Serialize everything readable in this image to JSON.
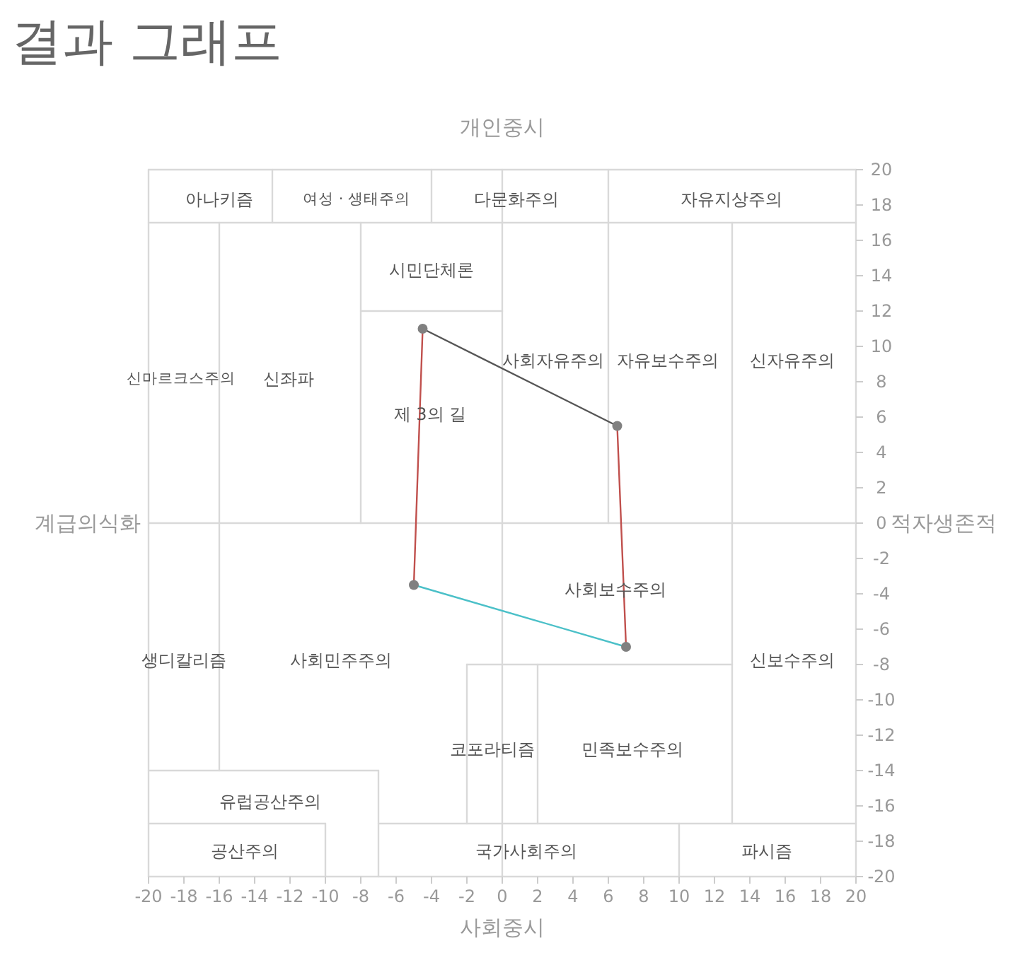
{
  "chart_data": {
    "type": "line",
    "title": "결과 그래프",
    "xlabel": "사회중시",
    "ylabel": "계급의식화",
    "y2label": "적자생존적",
    "xlim": [
      -20,
      20
    ],
    "ylim": [
      -20,
      20
    ],
    "xticks": [
      -20,
      -18,
      -16,
      -14,
      -12,
      -10,
      -8,
      -6,
      -4,
      -2,
      0,
      2,
      4,
      6,
      8,
      10,
      12,
      14,
      16,
      18,
      20
    ],
    "yticks": [
      -20,
      -18,
      -16,
      -14,
      -12,
      -10,
      -8,
      -6,
      -4,
      -2,
      0,
      2,
      4,
      6,
      8,
      10,
      12,
      14,
      16,
      18,
      20
    ],
    "grid": false,
    "series": [
      {
        "color": "#d9d9d9",
        "x": [
          -20,
          20
        ],
        "values": [
          20,
          20
        ]
      },
      {
        "color": "#d9d9d9",
        "x": [
          -20,
          -20
        ],
        "values": [
          20,
          -20
        ]
      },
      {
        "color": "#d9d9d9",
        "x": [
          -20,
          20
        ],
        "values": [
          -20,
          -20
        ]
      },
      {
        "color": "#d9d9d9",
        "x": [
          20,
          20
        ],
        "values": [
          20,
          -20
        ]
      },
      {
        "color": "#d9d9d9",
        "x": [
          -20,
          20
        ],
        "values": [
          17,
          17
        ]
      },
      {
        "color": "#d9d9d9",
        "x": [
          -13,
          -13
        ],
        "values": [
          17,
          20
        ]
      },
      {
        "color": "#d9d9d9",
        "x": [
          -4,
          -4
        ],
        "values": [
          17,
          20
        ]
      },
      {
        "color": "#d9d9d9",
        "x": [
          6,
          6
        ],
        "values": [
          20,
          0
        ]
      },
      {
        "color": "#d9d9d9",
        "x": [
          -16,
          -16
        ],
        "values": [
          17,
          -14
        ]
      },
      {
        "color": "#d9d9d9",
        "x": [
          -8,
          -8
        ],
        "values": [
          17,
          0
        ]
      },
      {
        "color": "#d9d9d9",
        "x": [
          -8,
          0
        ],
        "values": [
          12,
          12
        ]
      },
      {
        "color": "#d9d9d9",
        "x": [
          0,
          0
        ],
        "values": [
          20,
          -20
        ]
      },
      {
        "color": "#d9d9d9",
        "x": [
          -20,
          20
        ],
        "values": [
          0,
          0
        ]
      },
      {
        "color": "#d9d9d9",
        "x": [
          13,
          13
        ],
        "values": [
          17,
          -17
        ]
      },
      {
        "color": "#d9d9d9",
        "x": [
          -2,
          13
        ],
        "values": [
          -8,
          -8
        ]
      },
      {
        "color": "#d9d9d9",
        "x": [
          -2,
          -2
        ],
        "values": [
          -8,
          -17
        ]
      },
      {
        "color": "#d9d9d9",
        "x": [
          2,
          2
        ],
        "values": [
          -8,
          -17
        ]
      },
      {
        "color": "#d9d9d9",
        "x": [
          -20,
          -7
        ],
        "values": [
          -14,
          -14
        ]
      },
      {
        "color": "#d9d9d9",
        "x": [
          -7,
          -7
        ],
        "values": [
          -14,
          -20
        ]
      },
      {
        "color": "#d9d9d9",
        "x": [
          -20,
          -10
        ],
        "values": [
          -17,
          -17
        ]
      },
      {
        "color": "#d9d9d9",
        "x": [
          -7,
          20
        ],
        "values": [
          -17,
          -17
        ]
      },
      {
        "color": "#d9d9d9",
        "x": [
          -10,
          -10
        ],
        "values": [
          -17,
          -20
        ]
      },
      {
        "color": "#d9d9d9",
        "x": [
          10,
          10
        ],
        "values": [
          -17,
          -20
        ]
      },
      {
        "color": "#555555",
        "x": [
          -4.5,
          6.5
        ],
        "values": [
          11,
          5.5
        ]
      },
      {
        "color": "#c0504d",
        "x": [
          6.5,
          7
        ],
        "values": [
          5.5,
          -7
        ]
      },
      {
        "color": "#4bc0c8",
        "x": [
          7,
          -5
        ],
        "values": [
          -7,
          -3.5
        ]
      },
      {
        "color": "#c0504d",
        "x": [
          -5,
          -4.5
        ],
        "values": [
          -3.5,
          11
        ]
      },
      {
        "type": "scatter",
        "color": "#808080",
        "x": [
          -4.5,
          6.5,
          7,
          -5
        ],
        "values": [
          11,
          5.5,
          -7,
          -3.5
        ]
      }
    ],
    "annotations": [
      "개인중시",
      "아나키즘",
      "여성 · 생태주의",
      "다문화주의",
      "자유지상주의",
      "시민단체론",
      "신마르크스주의",
      "신좌파",
      "사회자유주의",
      "자유보수주의",
      "신자유주의",
      "제 3의 길",
      "사회보수주의",
      "생디칼리즘",
      "사회민주주의",
      "신보수주의",
      "코포라티즘",
      "민족보수주의",
      "유럽공산주의",
      "공산주의",
      "국가사회주의",
      "파시즘"
    ]
  }
}
